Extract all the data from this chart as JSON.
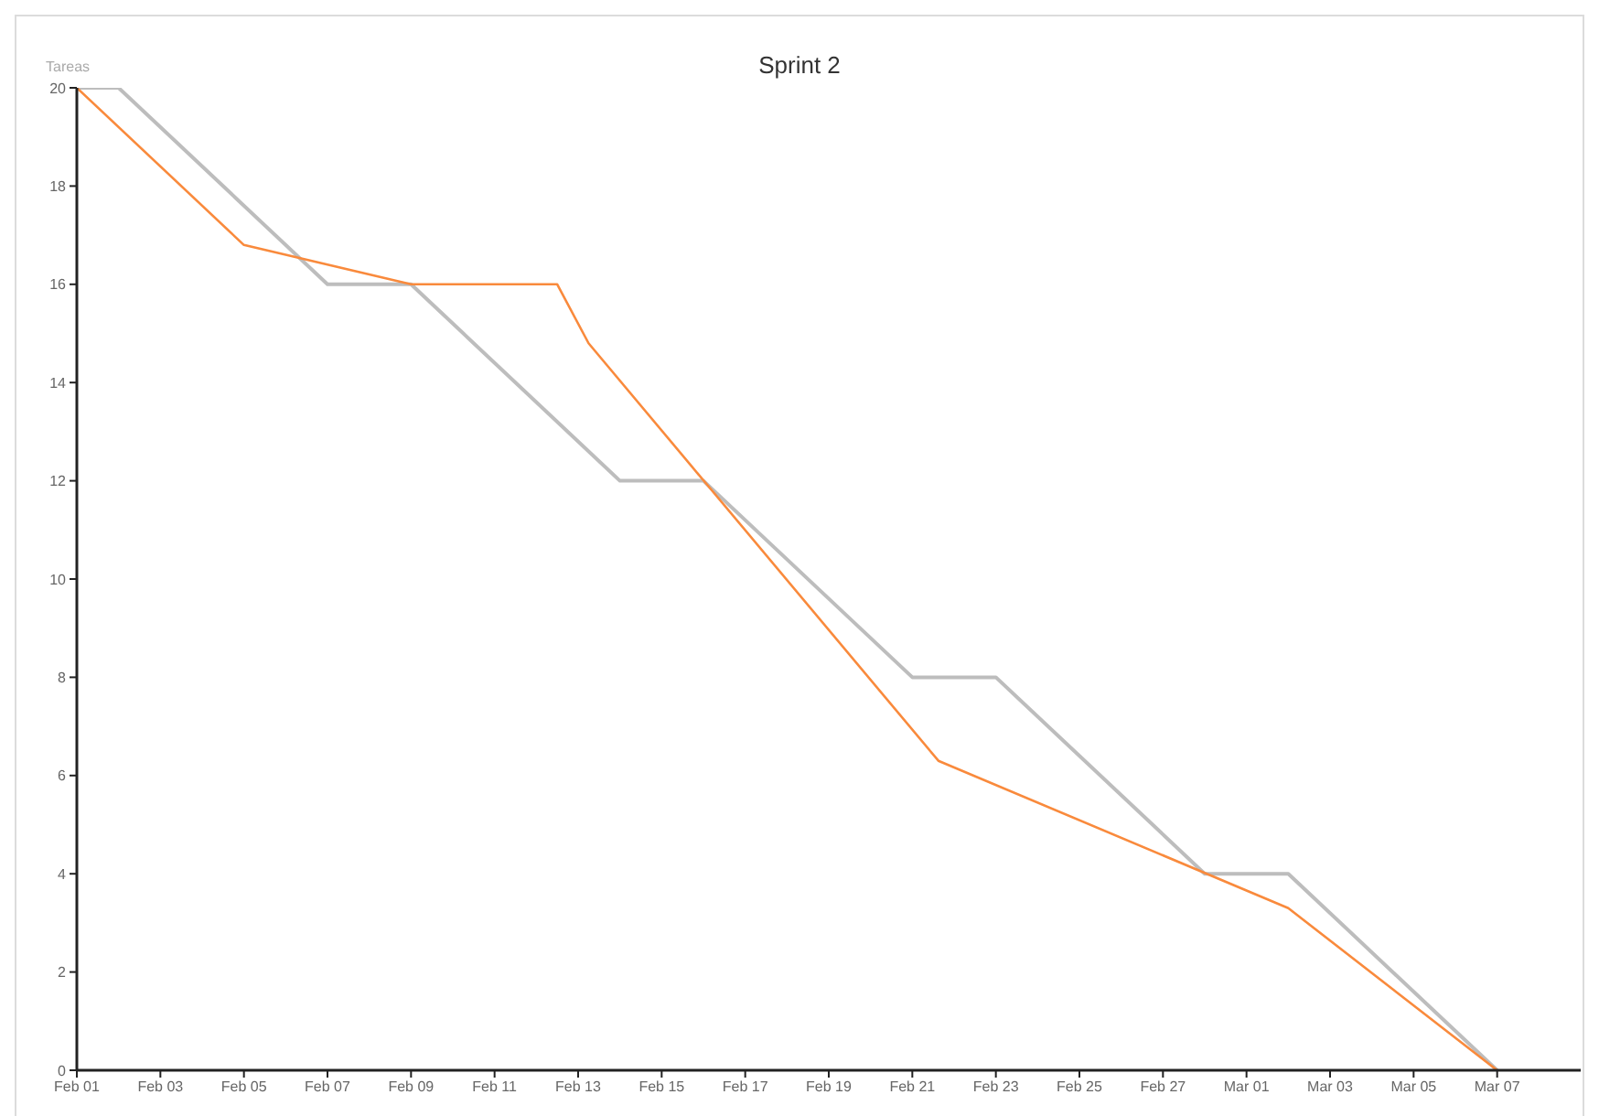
{
  "chart_data": {
    "type": "line",
    "title": "Sprint 2",
    "ylabel": "Tareas",
    "xlim": [
      "--02-01",
      "--03-09"
    ],
    "xticks": [
      {
        "value": "--02-01",
        "label": "Feb 01"
      },
      {
        "value": "--02-03",
        "label": "Feb 03"
      },
      {
        "value": "--02-05",
        "label": "Feb 05"
      },
      {
        "value": "--02-07",
        "label": "Feb 07"
      },
      {
        "value": "--02-09",
        "label": "Feb 09"
      },
      {
        "value": "--02-11",
        "label": "Feb 11"
      },
      {
        "value": "--02-13",
        "label": "Feb 13"
      },
      {
        "value": "--02-15",
        "label": "Feb 15"
      },
      {
        "value": "--02-17",
        "label": "Feb 17"
      },
      {
        "value": "--02-19",
        "label": "Feb 19"
      },
      {
        "value": "--02-21",
        "label": "Feb 21"
      },
      {
        "value": "--02-23",
        "label": "Feb 23"
      },
      {
        "value": "--02-25",
        "label": "Feb 25"
      },
      {
        "value": "--02-27",
        "label": "Feb 27"
      },
      {
        "value": "--03-01",
        "label": "Mar 01"
      },
      {
        "value": "--03-03",
        "label": "Mar 03"
      },
      {
        "value": "--03-05",
        "label": "Mar 05"
      },
      {
        "value": "--03-07",
        "label": "Mar 07"
      }
    ],
    "ylim": [
      0,
      20
    ],
    "yticks": [
      0,
      2,
      4,
      6,
      8,
      10,
      12,
      14,
      16,
      18,
      20
    ],
    "marker": "none",
    "line_style": "solid",
    "series": [
      {
        "color": "#bdbdbd",
        "x": [
          "--02-01",
          "--02-02",
          "--02-07",
          "--02-09",
          "--02-14",
          "--02-16",
          "--02-21",
          "--02-23",
          "--02-28",
          "--03-02",
          "--03-07"
        ],
        "values": [
          20,
          20,
          16,
          16,
          12,
          12,
          8,
          8,
          4,
          4,
          0
        ]
      },
      {
        "color": "#f98a3c",
        "x": [
          "--02-01",
          "--02-05",
          "--02-09",
          "--02-12T12:00",
          "--02-13T06:00",
          "--02-21T15:00",
          "--03-02",
          "--03-07"
        ],
        "values": [
          20,
          16.8,
          16,
          16,
          14.8,
          6.3,
          3.3,
          0
        ]
      }
    ]
  }
}
